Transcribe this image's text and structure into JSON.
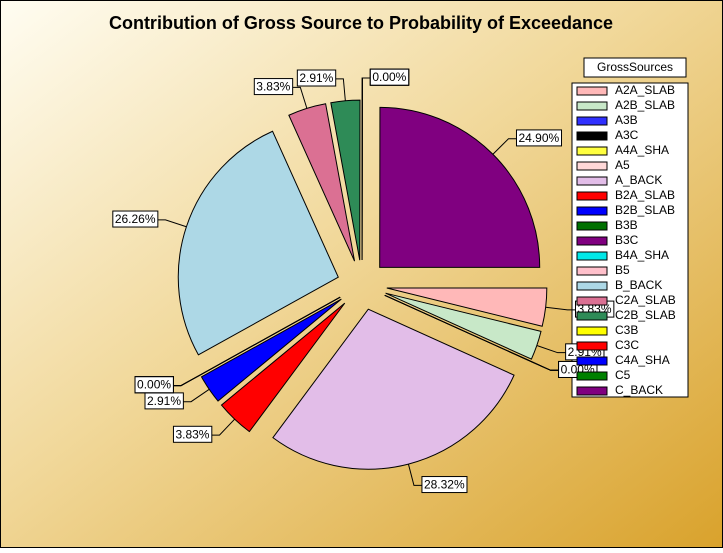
{
  "chart_data": {
    "type": "pie",
    "title": "Contribution of Gross Source to Probability of Exceedance",
    "legend_title": "GrossSources",
    "legend_position": "right",
    "categories": [
      "A2A_SLAB",
      "A2B_SLAB",
      "A3B",
      "A3C",
      "A4A_SHA",
      "A5",
      "A_BACK",
      "B2A_SLAB",
      "B2B_SLAB",
      "B3B",
      "B3C",
      "B4A_SHA",
      "B5",
      "B_BACK",
      "C2A_SLAB",
      "C2B_SLAB",
      "C3B",
      "C3C",
      "C4A_SHA",
      "C5",
      "C_BACK"
    ],
    "values": [
      3.83,
      2.91,
      0,
      0,
      0,
      0,
      28.32,
      3.83,
      2.91,
      0,
      0,
      0,
      0,
      26.26,
      3.83,
      2.91,
      0,
      0,
      0,
      0,
      24.9
    ],
    "value_labels": [
      "3.83%",
      "2.91%",
      "0.00%",
      "0.00%",
      "0.00%",
      "0.00%",
      "28.32%",
      "3.83%",
      "2.91%",
      "0.00%",
      "0.00%",
      "0.00%",
      "0.00%",
      "26.26%",
      "3.83%",
      "2.91%",
      "0.00%",
      "0.00%",
      "0.00%",
      "0.00%",
      "24.90%"
    ],
    "colors": [
      "#ffb8b8",
      "#c8e8c8",
      "#3030ff",
      "#000000",
      "#ffff40",
      "#ffd8d8",
      "#e2bde8",
      "#ff0000",
      "#0000ff",
      "#007000",
      "#800080",
      "#00e8e8",
      "#ffc0cb",
      "#add8e6",
      "#db7093",
      "#2e8b57",
      "#ffff00",
      "#ff0000",
      "#0000ff",
      "#008000",
      "#800080"
    ]
  }
}
